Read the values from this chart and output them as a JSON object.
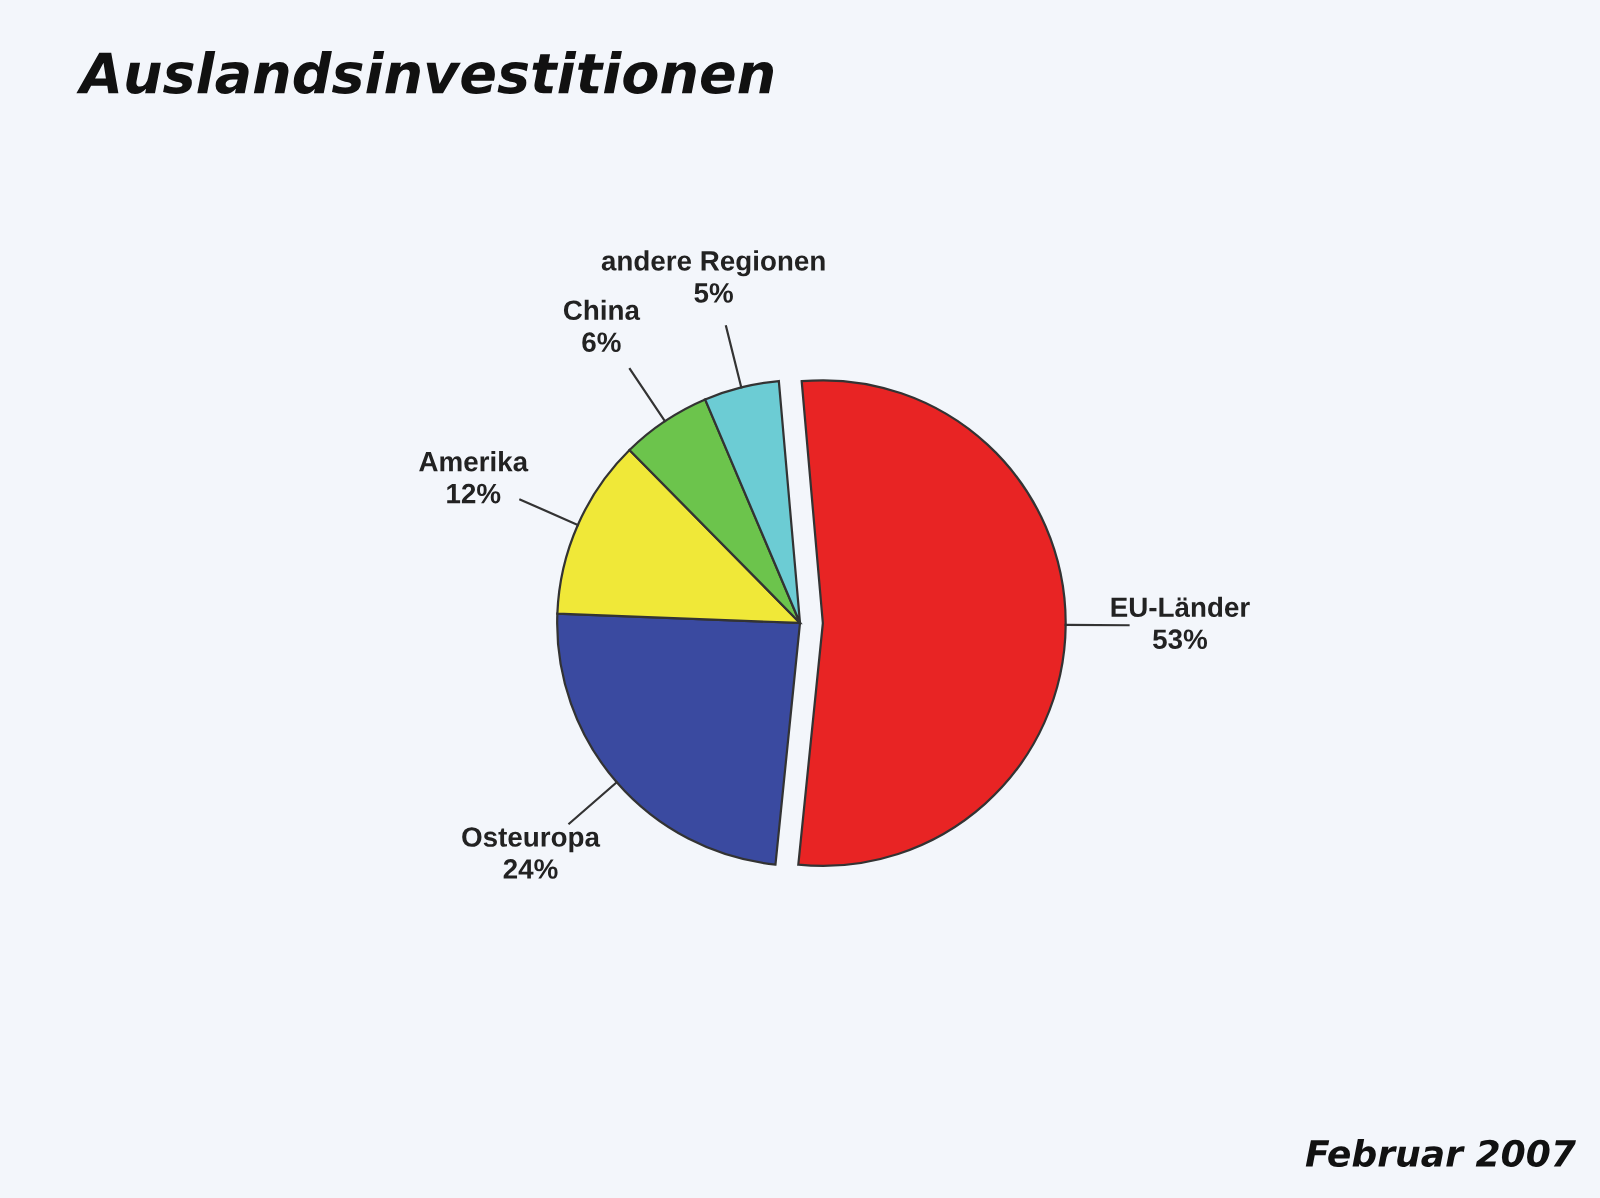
{
  "chart_data": {
    "type": "pie",
    "title": "Auslandsinvestitionen",
    "categories": [
      "EU-Länder",
      "Osteuropa",
      "Amerika",
      "China",
      "andere Regionen"
    ],
    "values": [
      53,
      24,
      12,
      6,
      5
    ],
    "colors": [
      "#e82424",
      "#3a4aa0",
      "#f0e838",
      "#6cc44c",
      "#6cccd4"
    ],
    "value_labels": [
      "53%",
      "24%",
      "12%",
      "6%",
      "5%"
    ],
    "annotations": [
      "Februar 2007"
    ]
  }
}
